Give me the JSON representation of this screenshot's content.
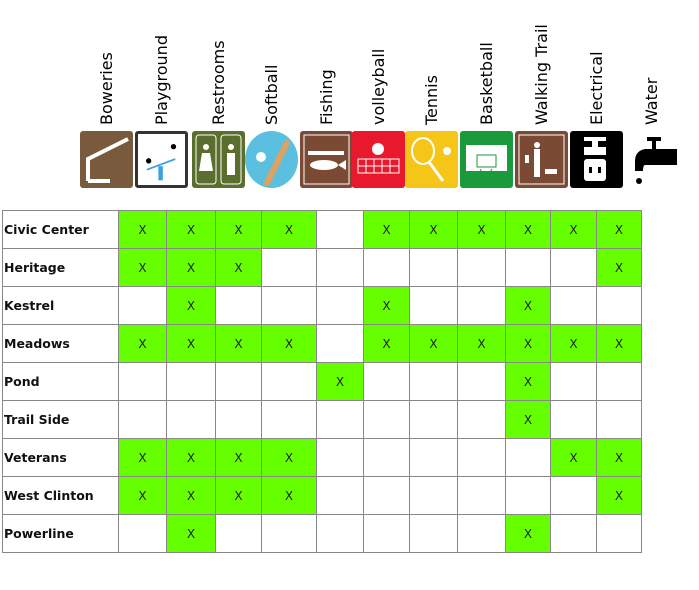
{
  "amenities": [
    {
      "label": "Boweries",
      "icon": "bowery-shelter-icon",
      "color": "#7a5a3c"
    },
    {
      "label": "Playground",
      "icon": "seesaw-icon",
      "color": "#ffffff"
    },
    {
      "label": "Restrooms",
      "icon": "restroom-icon",
      "color": "#5b6e2e"
    },
    {
      "label": "Softball",
      "icon": "softball-bat-icon",
      "color": "#5bc0e0"
    },
    {
      "label": "Fishing",
      "icon": "fish-icon",
      "color": "#7a4a34"
    },
    {
      "label": "volleyball",
      "icon": "volleyball-net-icon",
      "color": "#e8192c"
    },
    {
      "label": "Tennis",
      "icon": "tennis-racket-icon",
      "color": "#f5c518"
    },
    {
      "label": "Basketball",
      "icon": "basketball-hoop-icon",
      "color": "#1a9a3a"
    },
    {
      "label": "Walking Trail",
      "icon": "walker-dog-icon",
      "color": "#7a4a34"
    },
    {
      "label": "Electrical",
      "icon": "electrical-outlet-icon",
      "color": "#000000"
    },
    {
      "label": "Water",
      "icon": "water-faucet-icon",
      "color": "#000000"
    }
  ],
  "highlight_color": "#66ff00",
  "parks": [
    {
      "name": "Civic Center",
      "cells": [
        "X",
        "X",
        "X",
        "X",
        "",
        "X",
        "X",
        "X",
        "X",
        "X",
        "X"
      ]
    },
    {
      "name": "Heritage",
      "cells": [
        "X",
        "X",
        "X",
        "",
        "",
        "",
        "",
        "",
        "",
        "",
        "X"
      ]
    },
    {
      "name": "Kestrel",
      "cells": [
        "",
        "X",
        "",
        "",
        "",
        "X",
        "",
        "",
        "X",
        "",
        ""
      ]
    },
    {
      "name": "Meadows",
      "cells": [
        "X",
        "X",
        "X",
        "X",
        "",
        "X",
        "X",
        "X",
        "X",
        "X",
        "X"
      ]
    },
    {
      "name": "Pond",
      "cells": [
        "",
        "",
        "",
        "",
        "X",
        "",
        "",
        "",
        "X",
        "",
        ""
      ]
    },
    {
      "name": "Trail Side",
      "cells": [
        "",
        "",
        "",
        "",
        "",
        "",
        "",
        "",
        "X",
        "",
        ""
      ]
    },
    {
      "name": "Veterans",
      "cells": [
        "X",
        "X",
        "X",
        "X",
        "",
        "",
        "",
        "",
        "",
        "X",
        "X"
      ]
    },
    {
      "name": "West Clinton",
      "cells": [
        "X",
        "X",
        "X",
        "X",
        "",
        "",
        "",
        "",
        "",
        "",
        "X"
      ]
    },
    {
      "name": "Powerline",
      "cells": [
        "",
        "X",
        "",
        "",
        "",
        "",
        "",
        "",
        "X",
        "",
        ""
      ]
    }
  ]
}
